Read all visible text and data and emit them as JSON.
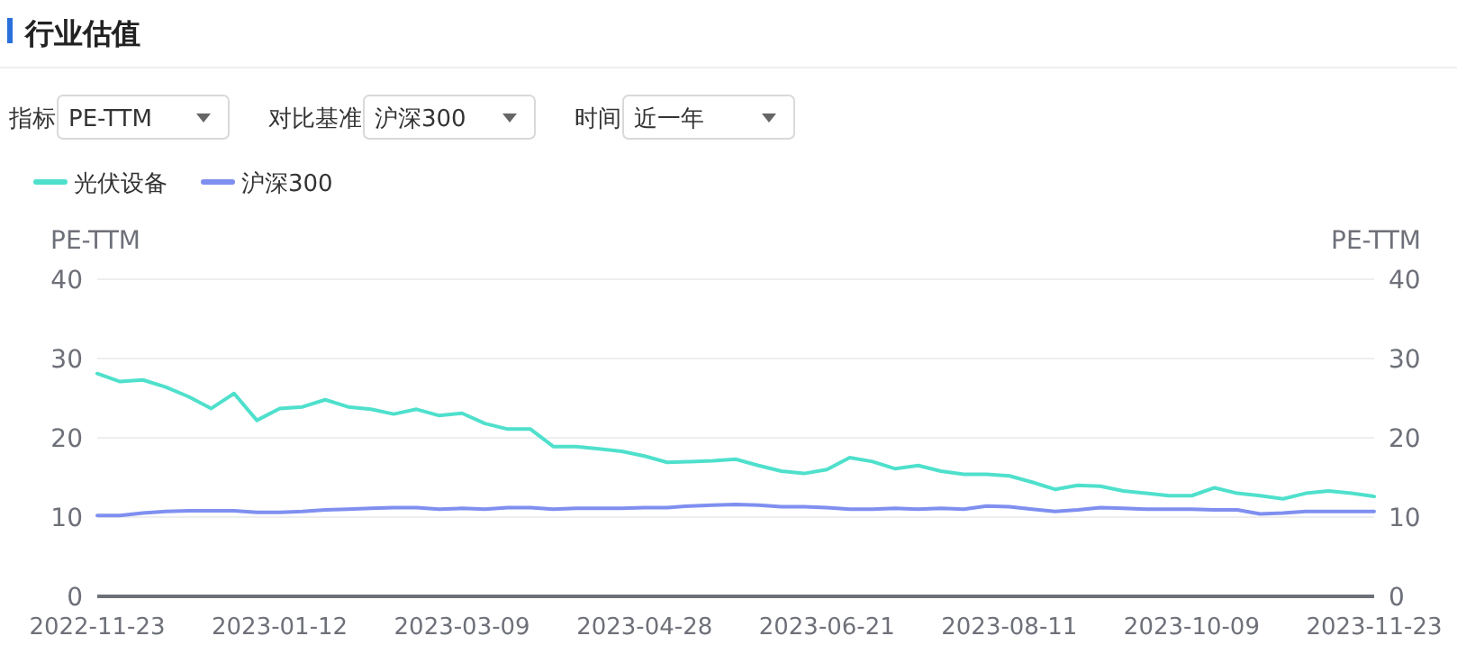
{
  "chart_data": {
    "type": "line",
    "title": "行业估值",
    "annotations": [
      "指标",
      "PE-TTM",
      "对比基准",
      "沪深300",
      "时间",
      "近一年"
    ],
    "ylabel": "PE-TTM",
    "y2label": "PE-TTM",
    "ylim": [
      0,
      40
    ],
    "yticks": [
      0,
      10,
      20,
      30,
      40
    ],
    "y2lim": [
      0,
      40
    ],
    "y2ticks": [
      0,
      10,
      20,
      30,
      40
    ],
    "grid": "y",
    "legend": "top left",
    "line_style": "solid",
    "categories": [
      "2022-11-23",
      null,
      null,
      null,
      null,
      null,
      null,
      null,
      "2023-01-12",
      null,
      null,
      null,
      null,
      null,
      null,
      null,
      "2023-03-09",
      null,
      null,
      null,
      null,
      null,
      null,
      null,
      "2023-04-28",
      null,
      null,
      null,
      null,
      null,
      null,
      null,
      "2023-06-21",
      null,
      null,
      null,
      null,
      null,
      null,
      null,
      "2023-08-11",
      null,
      null,
      null,
      null,
      null,
      null,
      null,
      "2023-10-09",
      null,
      null,
      null,
      null,
      null,
      null,
      null,
      "2023-11-23"
    ],
    "series": [
      {
        "name": "光伏设备",
        "color": "#4fe0cc",
        "values": [
          28.1,
          27.1,
          27.3,
          26.4,
          25.2,
          23.7,
          25.6,
          22.2,
          23.7,
          23.9,
          24.8,
          23.9,
          23.6,
          23.0,
          23.6,
          22.8,
          23.1,
          21.8,
          21.1,
          21.1,
          18.9,
          18.9,
          18.6,
          18.3,
          17.7,
          16.9,
          17.0,
          17.1,
          17.3,
          16.5,
          15.8,
          15.5,
          16.0,
          17.5,
          17.0,
          16.1,
          16.5,
          15.8,
          15.4,
          15.4,
          15.2,
          14.4,
          13.5,
          14.0,
          13.9,
          13.3,
          13.0,
          12.7,
          12.7,
          13.7,
          13.0,
          12.7,
          12.3,
          13.0,
          13.3,
          13.0,
          12.6
        ]
      },
      {
        "name": "沪深300",
        "color": "#7f8ff0",
        "values": [
          10.2,
          10.2,
          10.5,
          10.7,
          10.8,
          10.8,
          10.8,
          10.6,
          10.6,
          10.7,
          10.9,
          11.0,
          11.1,
          11.2,
          11.2,
          11.0,
          11.1,
          11.0,
          11.2,
          11.2,
          11.0,
          11.1,
          11.1,
          11.1,
          11.2,
          11.2,
          11.4,
          11.5,
          11.6,
          11.5,
          11.3,
          11.3,
          11.2,
          11.0,
          11.0,
          11.1,
          11.0,
          11.1,
          11.0,
          11.4,
          11.3,
          11.0,
          10.7,
          10.9,
          11.2,
          11.1,
          11.0,
          11.0,
          11.0,
          10.9,
          10.9,
          10.4,
          10.5,
          10.7,
          10.7,
          10.7,
          10.7
        ]
      }
    ]
  }
}
